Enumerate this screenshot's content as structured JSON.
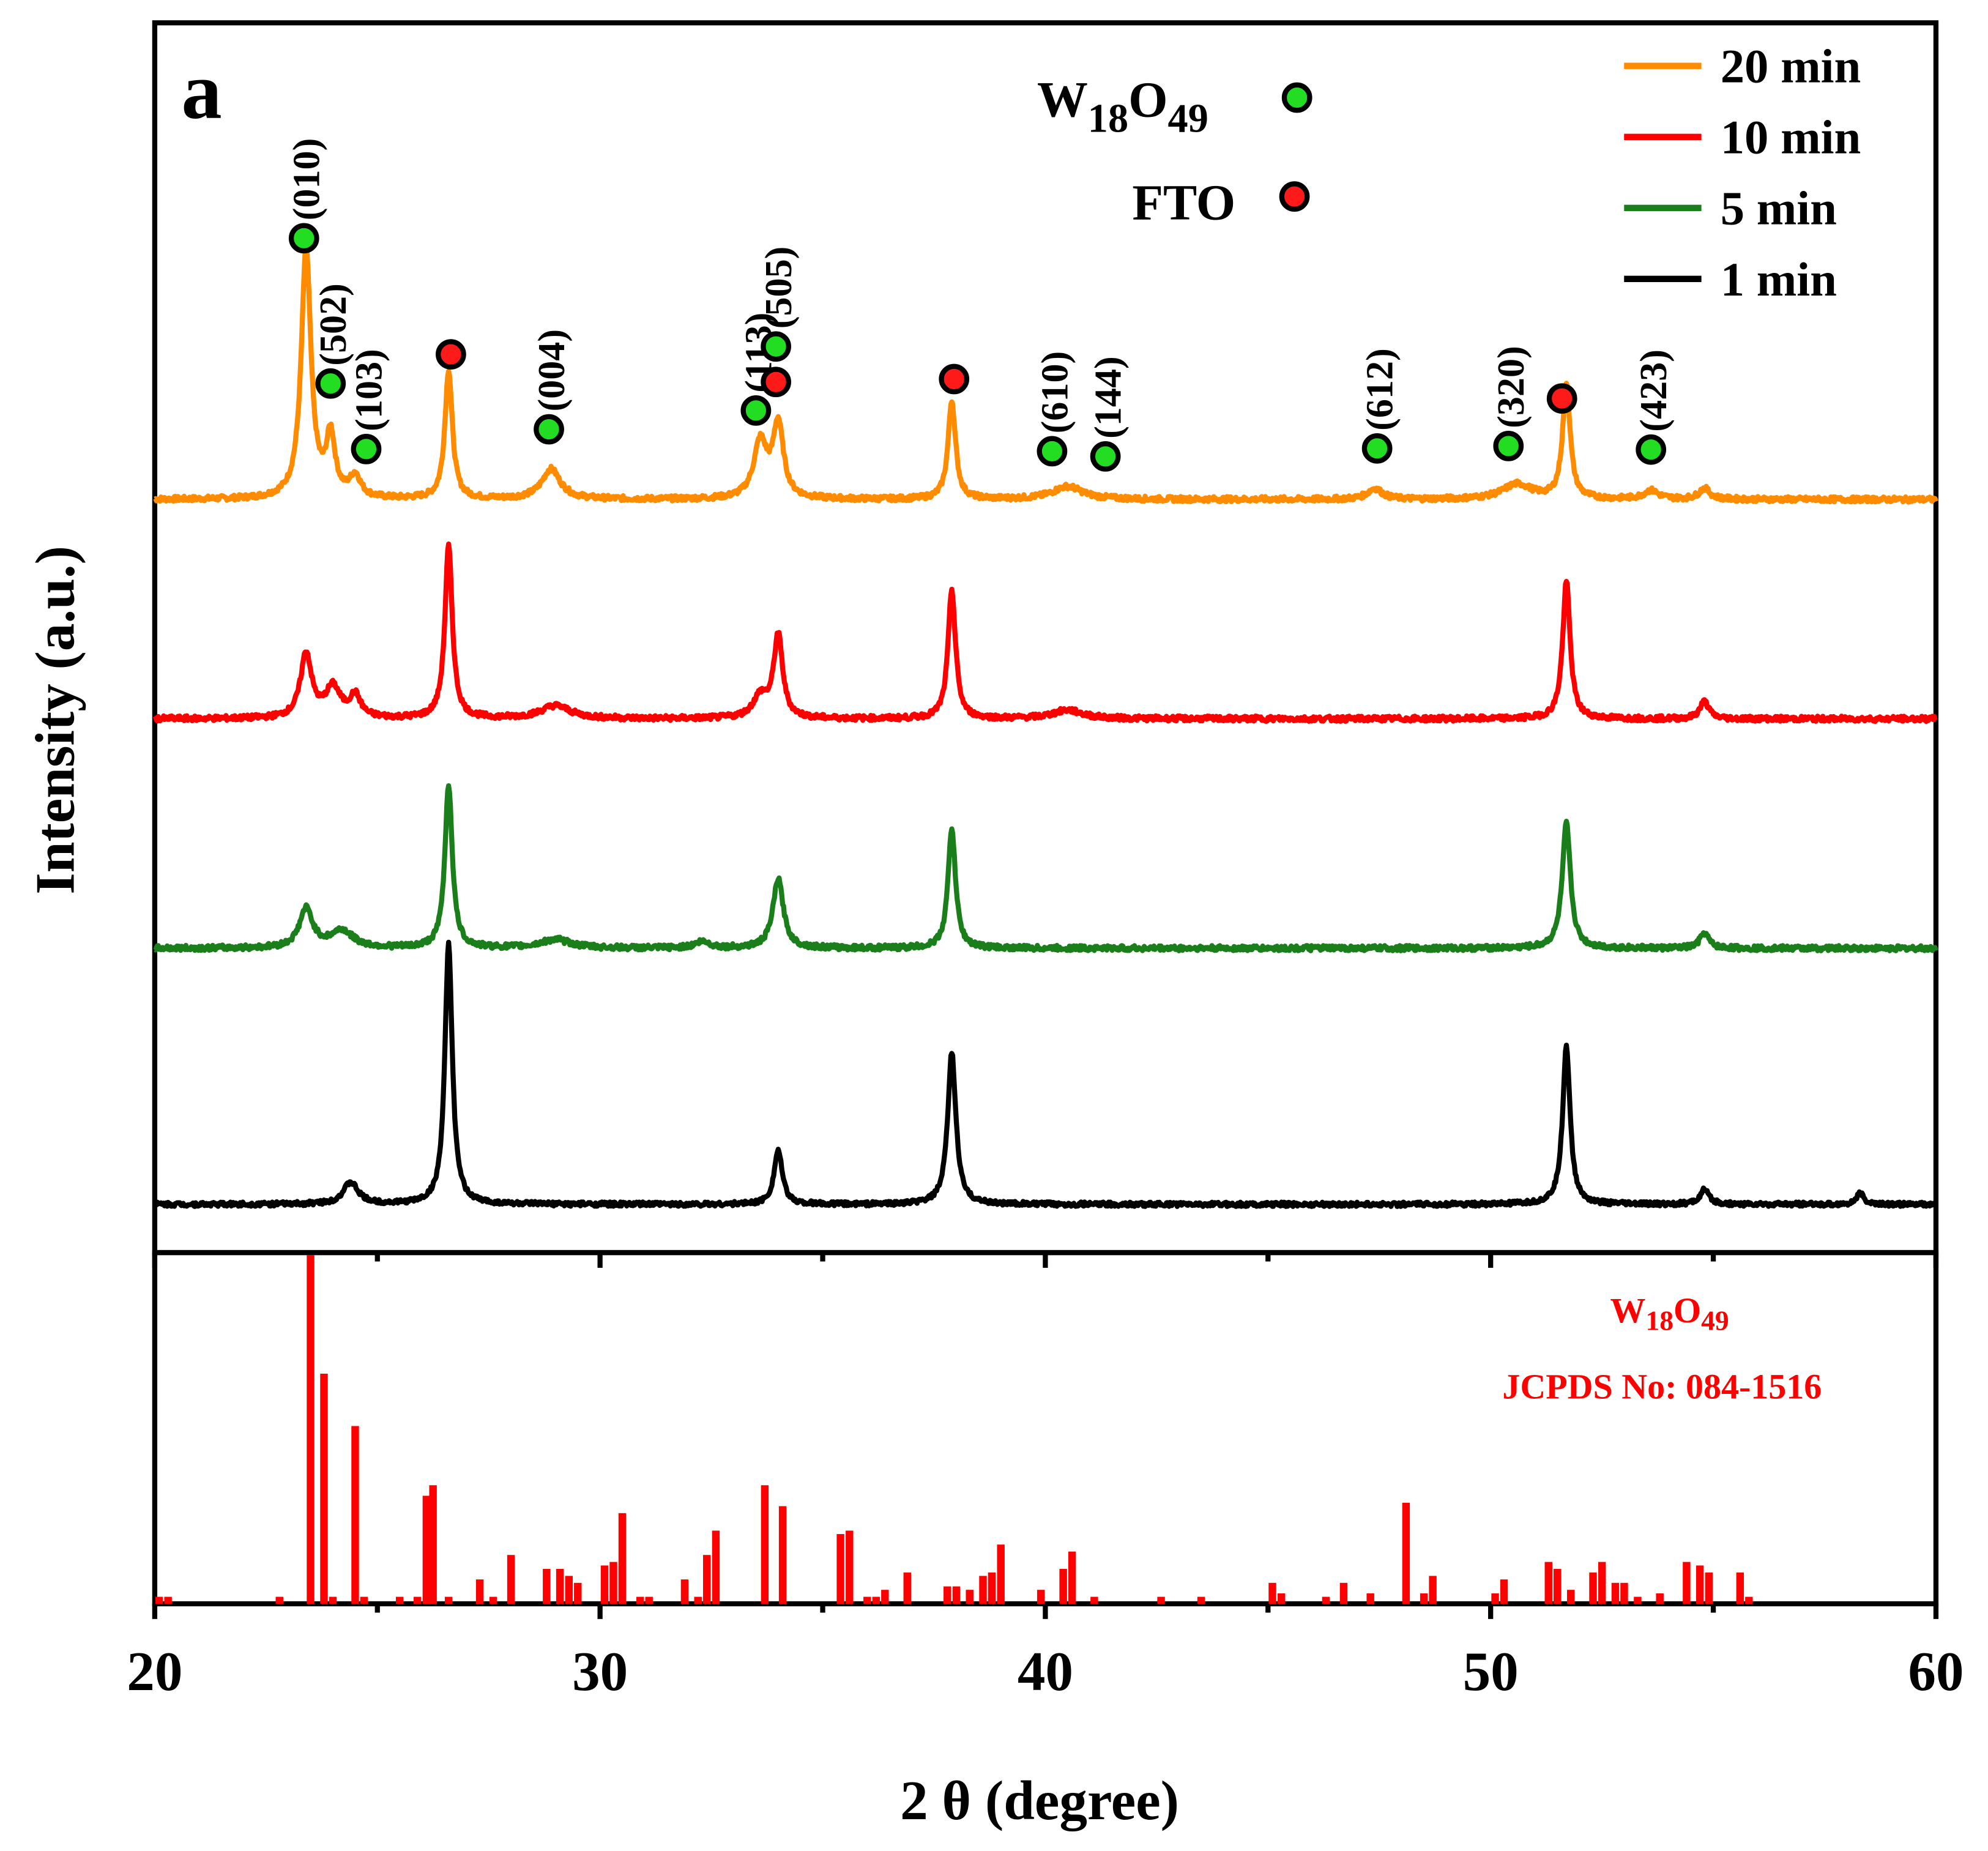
{
  "chart_data": {
    "type": "line",
    "panel_letter": "a",
    "xlabel": "2 θ (degree)",
    "ylabel": "Intensity (a.u.)",
    "xlim": [
      20,
      60
    ],
    "xticks": [
      20,
      30,
      40,
      50,
      60
    ],
    "grid": false,
    "legend": {
      "position": "top-right",
      "entries": [
        {
          "label": "20 min",
          "color": "#ff8c00"
        },
        {
          "label": "10 min",
          "color": "#ff0000"
        },
        {
          "label": "5 min",
          "color": "#1a7f1a"
        },
        {
          "label": "1 min",
          "color": "#000000"
        }
      ]
    },
    "marker_legend": [
      {
        "label": "W18O49",
        "main": "W",
        "sub1": "18",
        "mid": "O",
        "sub2": "49",
        "color": "#22dd22"
      },
      {
        "label": "FTO",
        "color": "#ff1a1a"
      }
    ],
    "series": [
      {
        "name": "20 min",
        "color": "#ff8c00",
        "baseline": 0.0,
        "peaks": [
          {
            "x": 23.4,
            "h": 0.58,
            "w": 0.13
          },
          {
            "x": 23.95,
            "h": 0.14,
            "w": 0.12
          },
          {
            "x": 24.5,
            "h": 0.05,
            "w": 0.15
          },
          {
            "x": 26.6,
            "h": 0.3,
            "w": 0.1
          },
          {
            "x": 28.9,
            "h": 0.07,
            "w": 0.25
          },
          {
            "x": 33.6,
            "h": 0.13,
            "w": 0.18
          },
          {
            "x": 34.0,
            "h": 0.17,
            "w": 0.14
          },
          {
            "x": 37.9,
            "h": 0.23,
            "w": 0.1
          },
          {
            "x": 40.5,
            "h": 0.03,
            "w": 0.4
          },
          {
            "x": 47.4,
            "h": 0.025,
            "w": 0.2
          },
          {
            "x": 50.6,
            "h": 0.035,
            "w": 0.4
          },
          {
            "x": 51.7,
            "h": 0.27,
            "w": 0.1
          },
          {
            "x": 53.6,
            "h": 0.02,
            "w": 0.2
          },
          {
            "x": 54.8,
            "h": 0.025,
            "w": 0.15
          }
        ]
      },
      {
        "name": "10 min",
        "color": "#ff0000",
        "baseline": 0.0,
        "peaks": [
          {
            "x": 23.4,
            "h": 0.15,
            "w": 0.15
          },
          {
            "x": 24.0,
            "h": 0.07,
            "w": 0.2
          },
          {
            "x": 24.5,
            "h": 0.05,
            "w": 0.15
          },
          {
            "x": 26.6,
            "h": 0.4,
            "w": 0.1
          },
          {
            "x": 29.0,
            "h": 0.03,
            "w": 0.4
          },
          {
            "x": 33.6,
            "h": 0.05,
            "w": 0.2
          },
          {
            "x": 34.0,
            "h": 0.19,
            "w": 0.12
          },
          {
            "x": 37.9,
            "h": 0.3,
            "w": 0.1
          },
          {
            "x": 40.5,
            "h": 0.02,
            "w": 0.4
          },
          {
            "x": 51.7,
            "h": 0.32,
            "w": 0.1
          },
          {
            "x": 54.8,
            "h": 0.04,
            "w": 0.12
          }
        ]
      },
      {
        "name": "5 min",
        "color": "#1a7f1a",
        "baseline": 0.0,
        "peaks": [
          {
            "x": 23.4,
            "h": 0.09,
            "w": 0.18
          },
          {
            "x": 24.2,
            "h": 0.04,
            "w": 0.3
          },
          {
            "x": 26.6,
            "h": 0.38,
            "w": 0.1
          },
          {
            "x": 29.0,
            "h": 0.02,
            "w": 0.4
          },
          {
            "x": 32.3,
            "h": 0.015,
            "w": 0.2
          },
          {
            "x": 34.0,
            "h": 0.16,
            "w": 0.14
          },
          {
            "x": 37.9,
            "h": 0.28,
            "w": 0.1
          },
          {
            "x": 51.7,
            "h": 0.29,
            "w": 0.11
          },
          {
            "x": 54.8,
            "h": 0.035,
            "w": 0.12
          }
        ]
      },
      {
        "name": "1 min",
        "color": "#000000",
        "baseline": 0.0,
        "peaks": [
          {
            "x": 24.4,
            "h": 0.06,
            "w": 0.2
          },
          {
            "x": 26.6,
            "h": 0.72,
            "w": 0.1
          },
          {
            "x": 34.0,
            "h": 0.15,
            "w": 0.11
          },
          {
            "x": 37.9,
            "h": 0.42,
            "w": 0.11
          },
          {
            "x": 51.7,
            "h": 0.44,
            "w": 0.1
          },
          {
            "x": 54.8,
            "h": 0.04,
            "w": 0.12
          },
          {
            "x": 58.3,
            "h": 0.03,
            "w": 0.1
          }
        ]
      }
    ],
    "annotations": [
      {
        "marker": "W18O49",
        "x": 23.35,
        "label": "(010)",
        "series": "20 min"
      },
      {
        "marker": "W18O49",
        "x": 23.95,
        "label": "(502)",
        "series": "20 min"
      },
      {
        "marker": "W18O49",
        "x": 24.75,
        "label": "(103)",
        "series": "20 min"
      },
      {
        "marker": "FTO",
        "x": 26.65,
        "label": "",
        "series": "20 min"
      },
      {
        "marker": "W18O49",
        "x": 28.85,
        "label": "(004)",
        "series": "20 min"
      },
      {
        "marker": "W18O49",
        "x": 33.5,
        "label": "(113)",
        "series": "20 min"
      },
      {
        "marker": "FTO",
        "x": 33.95,
        "label": "",
        "series": "20 min"
      },
      {
        "marker": "W18O49",
        "x": 33.95,
        "label": "(505)",
        "series": "20 min"
      },
      {
        "marker": "FTO",
        "x": 37.95,
        "label": "",
        "series": "20 min"
      },
      {
        "marker": "W18O49",
        "x": 40.15,
        "label": "(610)",
        "series": "20 min"
      },
      {
        "marker": "W18O49",
        "x": 41.35,
        "label": "(144)",
        "series": "20 min"
      },
      {
        "marker": "W18O49",
        "x": 47.45,
        "label": "(612)",
        "series": "20 min"
      },
      {
        "marker": "W18O49",
        "x": 50.4,
        "label": "(320)",
        "series": "20 min"
      },
      {
        "marker": "FTO",
        "x": 51.6,
        "label": "",
        "series": "20 min"
      },
      {
        "marker": "W18O49",
        "x": 53.6,
        "label": "(423)",
        "series": "20 min"
      }
    ],
    "reference": {
      "label_main": "W",
      "label_sub1": "18",
      "label_mid": "O",
      "label_sub2": "49",
      "jcpds": "JCPDS No: 084-1516",
      "color": "#ff0000",
      "lines": [
        [
          20.1,
          0.02
        ],
        [
          20.3,
          0.02
        ],
        [
          22.8,
          0.02
        ],
        [
          23.5,
          1.0
        ],
        [
          23.8,
          0.66
        ],
        [
          24.0,
          0.02
        ],
        [
          24.5,
          0.51
        ],
        [
          24.7,
          0.02
        ],
        [
          25.5,
          0.02
        ],
        [
          25.9,
          0.02
        ],
        [
          26.1,
          0.31
        ],
        [
          26.25,
          0.34
        ],
        [
          26.6,
          0.02
        ],
        [
          27.3,
          0.07
        ],
        [
          27.6,
          0.02
        ],
        [
          28.0,
          0.14
        ],
        [
          28.8,
          0.1
        ],
        [
          29.1,
          0.1
        ],
        [
          29.3,
          0.08
        ],
        [
          29.5,
          0.06
        ],
        [
          30.1,
          0.11
        ],
        [
          30.3,
          0.12
        ],
        [
          30.5,
          0.26
        ],
        [
          30.9,
          0.02
        ],
        [
          31.1,
          0.02
        ],
        [
          31.9,
          0.07
        ],
        [
          32.2,
          0.02
        ],
        [
          32.4,
          0.14
        ],
        [
          32.6,
          0.21
        ],
        [
          33.7,
          0.34
        ],
        [
          34.1,
          0.28
        ],
        [
          35.4,
          0.2
        ],
        [
          35.6,
          0.21
        ],
        [
          36.0,
          0.02
        ],
        [
          36.2,
          0.02
        ],
        [
          36.4,
          0.04
        ],
        [
          36.9,
          0.09
        ],
        [
          37.8,
          0.05
        ],
        [
          38.0,
          0.05
        ],
        [
          38.3,
          0.04
        ],
        [
          38.6,
          0.08
        ],
        [
          38.8,
          0.09
        ],
        [
          39.0,
          0.17
        ],
        [
          39.9,
          0.04
        ],
        [
          40.4,
          0.1
        ],
        [
          40.6,
          0.15
        ],
        [
          41.1,
          0.02
        ],
        [
          42.6,
          0.02
        ],
        [
          43.5,
          0.02
        ],
        [
          45.1,
          0.06
        ],
        [
          45.3,
          0.03
        ],
        [
          46.3,
          0.02
        ],
        [
          46.7,
          0.06
        ],
        [
          47.3,
          0.03
        ],
        [
          48.1,
          0.29
        ],
        [
          48.5,
          0.03
        ],
        [
          48.7,
          0.08
        ],
        [
          50.1,
          0.03
        ],
        [
          50.3,
          0.07
        ],
        [
          51.3,
          0.12
        ],
        [
          51.5,
          0.1
        ],
        [
          51.8,
          0.04
        ],
        [
          52.3,
          0.09
        ],
        [
          52.5,
          0.12
        ],
        [
          52.8,
          0.06
        ],
        [
          53.0,
          0.06
        ],
        [
          53.3,
          0.02
        ],
        [
          53.8,
          0.03
        ],
        [
          54.4,
          0.12
        ],
        [
          54.7,
          0.11
        ],
        [
          54.9,
          0.09
        ],
        [
          55.6,
          0.09
        ],
        [
          55.8,
          0.02
        ]
      ]
    }
  }
}
